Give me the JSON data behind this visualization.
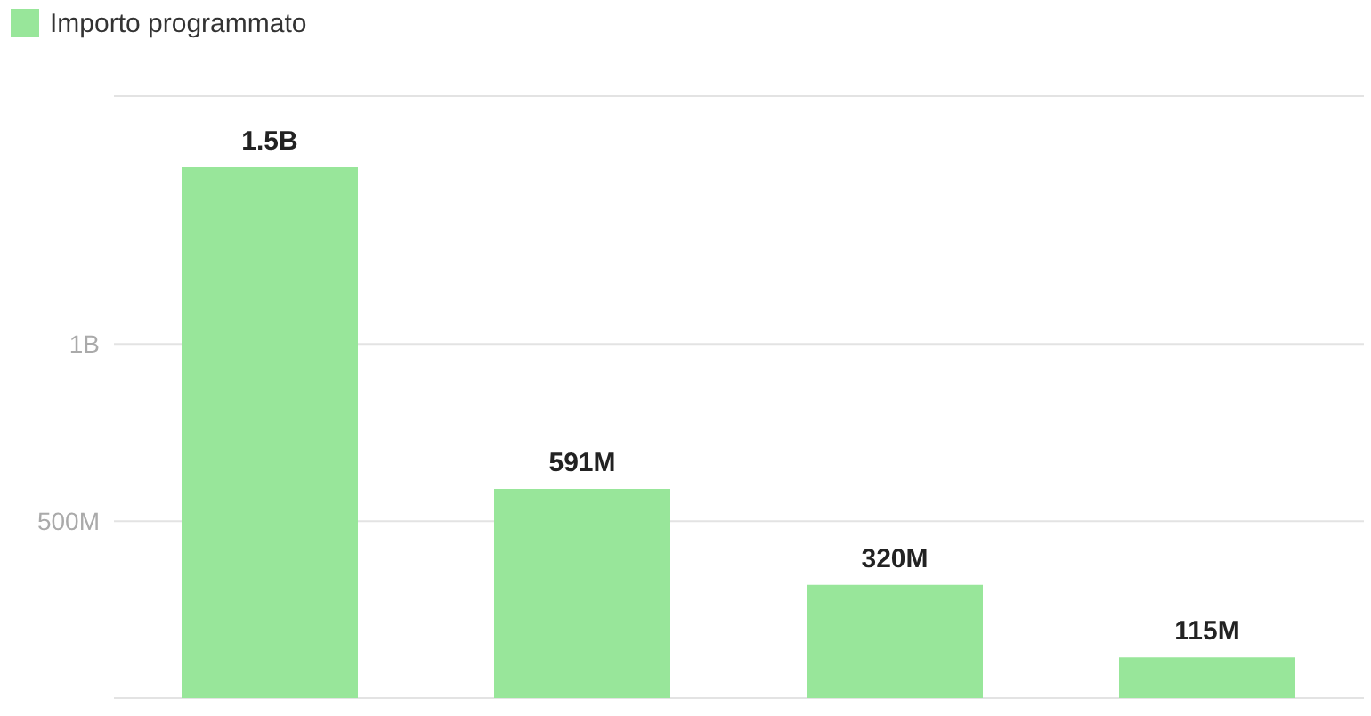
{
  "chart_data": {
    "type": "bar",
    "categories": [
      null,
      null,
      null,
      null
    ],
    "series": [
      {
        "name": "Importo programmato",
        "color": "#98e69a",
        "values": [
          1500000000,
          591000000,
          320000000,
          115000000
        ]
      }
    ],
    "value_labels": [
      "1.5B",
      "591M",
      "320M",
      "115M"
    ],
    "ylim": [
      0,
      1700000000
    ],
    "yticks": [
      {
        "value": 500000000,
        "label": "500M"
      },
      {
        "value": 1000000000,
        "label": "1B"
      }
    ],
    "grid": "y",
    "legend": "top left"
  }
}
